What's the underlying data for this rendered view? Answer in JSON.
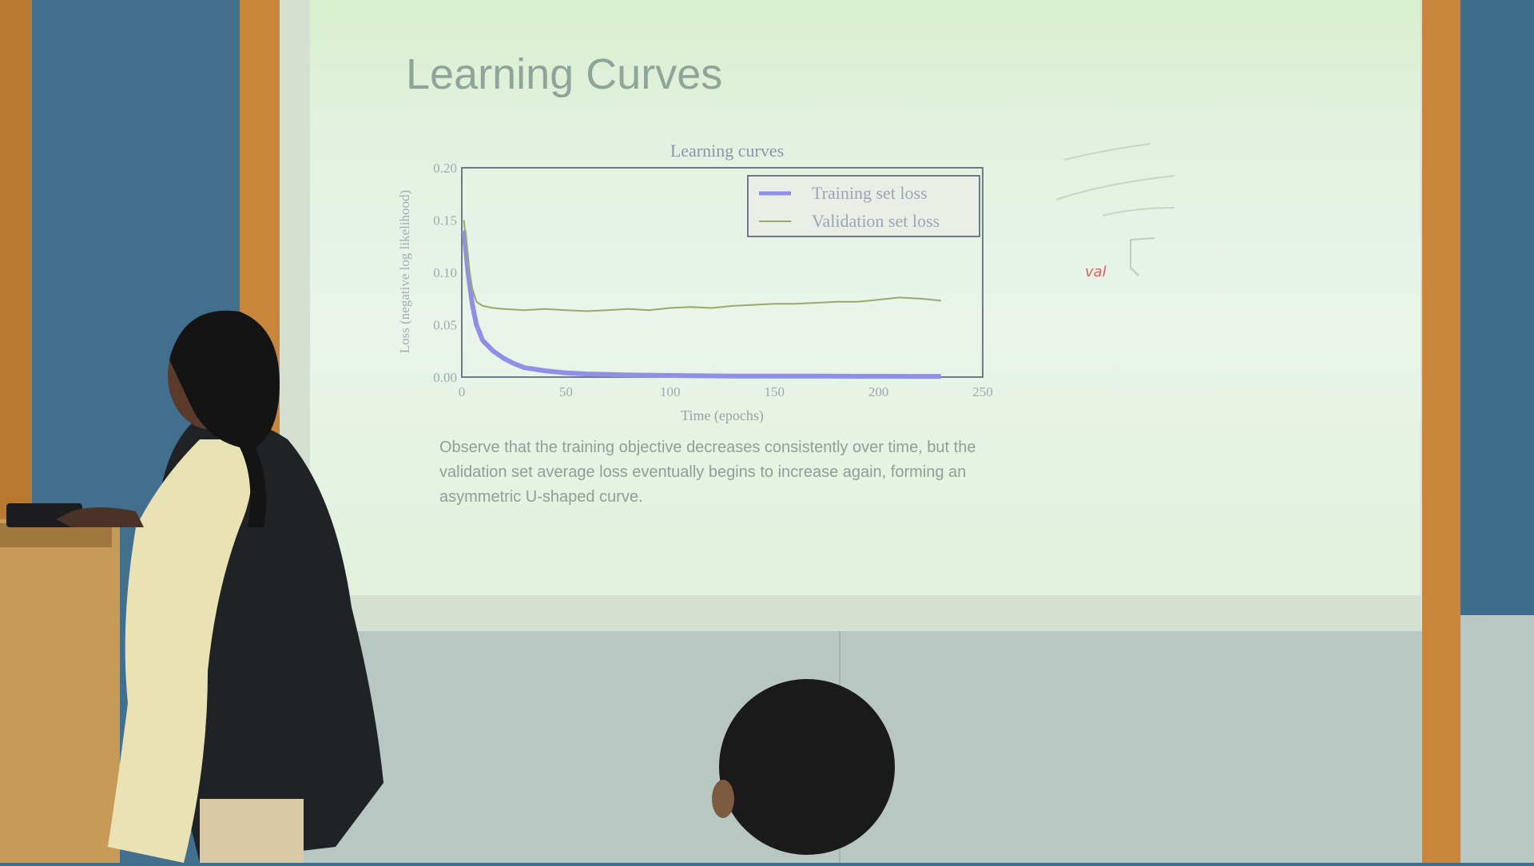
{
  "slide": {
    "title": "Learning Curves",
    "caption": "Observe that the training objective decreases consistently over time, but the validation set average loss eventually begins to increase again, forming an asymmetric U-shaped curve.",
    "annotation_text": "val"
  },
  "chart_data": {
    "type": "line",
    "title": "Learning curves",
    "xlabel": "Time (epochs)",
    "ylabel": "Loss (negative log likelihood)",
    "xlim": [
      0,
      250
    ],
    "ylim": [
      0.0,
      0.2
    ],
    "x_ticks": [
      "0",
      "50",
      "100",
      "150",
      "200",
      "250"
    ],
    "y_ticks": [
      "0.00",
      "0.05",
      "0.10",
      "0.15",
      "0.20"
    ],
    "legend_position": "top-right",
    "series": [
      {
        "name": "Training set loss",
        "color": "#8f8fe6",
        "x": [
          1,
          2,
          3,
          5,
          7,
          10,
          15,
          20,
          25,
          30,
          40,
          50,
          60,
          80,
          100,
          130,
          160,
          190,
          220,
          230
        ],
        "y": [
          0.14,
          0.12,
          0.1,
          0.07,
          0.05,
          0.035,
          0.025,
          0.018,
          0.013,
          0.009,
          0.006,
          0.004,
          0.003,
          0.002,
          0.0015,
          0.001,
          0.001,
          0.0008,
          0.0007,
          0.0007
        ]
      },
      {
        "name": "Validation set loss",
        "color": "#9aa86a",
        "x": [
          1,
          3,
          5,
          7,
          10,
          15,
          20,
          30,
          40,
          50,
          60,
          70,
          80,
          90,
          100,
          110,
          120,
          130,
          140,
          150,
          160,
          170,
          180,
          190,
          200,
          210,
          220,
          230
        ],
        "y": [
          0.15,
          0.11,
          0.085,
          0.072,
          0.068,
          0.066,
          0.065,
          0.064,
          0.065,
          0.064,
          0.063,
          0.064,
          0.065,
          0.064,
          0.066,
          0.067,
          0.066,
          0.068,
          0.069,
          0.07,
          0.07,
          0.071,
          0.072,
          0.072,
          0.074,
          0.076,
          0.075,
          0.073
        ]
      }
    ]
  }
}
